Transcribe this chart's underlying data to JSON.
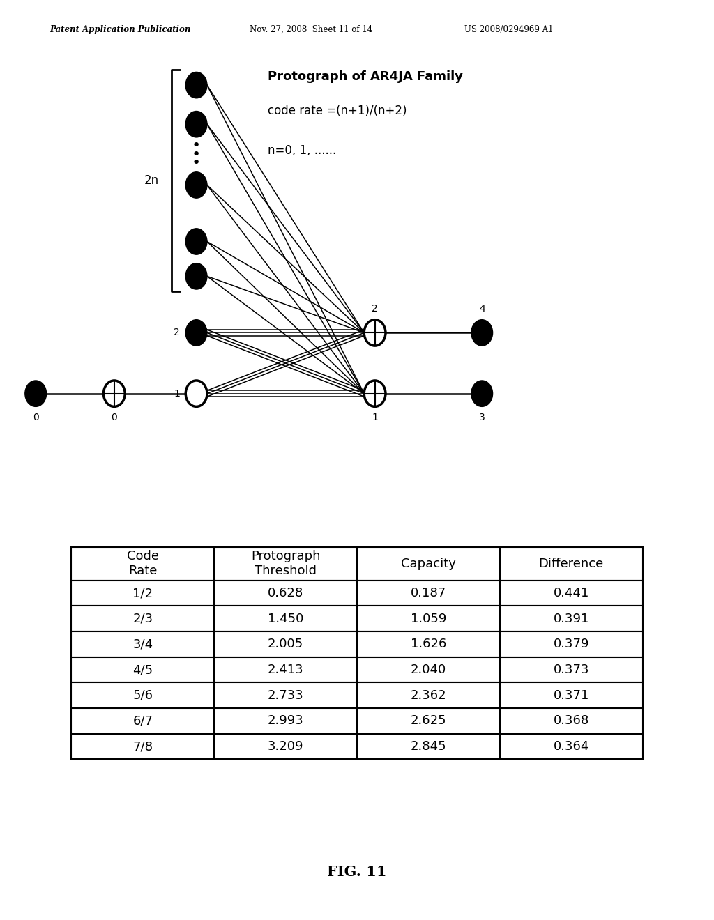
{
  "header_left": "Patent Application Publication",
  "header_mid": "Nov. 27, 2008  Sheet 11 of 14",
  "header_right": "US 2008/0294969 A1",
  "title_line1": "Protograph of AR4JA Family",
  "title_line2": "code rate =(n+1)/(n+2)",
  "title_line3": "n=0, 1, ......",
  "label_2n": "2n",
  "figure_label": "FIG. 11",
  "table_headers": [
    "Code\nRate",
    "Protograph\nThreshold",
    "Capacity",
    "Difference"
  ],
  "table_data": [
    [
      "1/2",
      "0.628",
      "0.187",
      "0.441"
    ],
    [
      "2/3",
      "1.450",
      "1.059",
      "0.391"
    ],
    [
      "3/4",
      "2.005",
      "1.626",
      "0.379"
    ],
    [
      "4/5",
      "2.413",
      "2.040",
      "0.373"
    ],
    [
      "5/6",
      "2.733",
      "2.362",
      "0.371"
    ],
    [
      "6/7",
      "2.993",
      "2.625",
      "0.368"
    ],
    [
      "7/8",
      "3.209",
      "2.845",
      "0.364"
    ]
  ],
  "bg_color": "#ffffff",
  "text_color": "#000000"
}
